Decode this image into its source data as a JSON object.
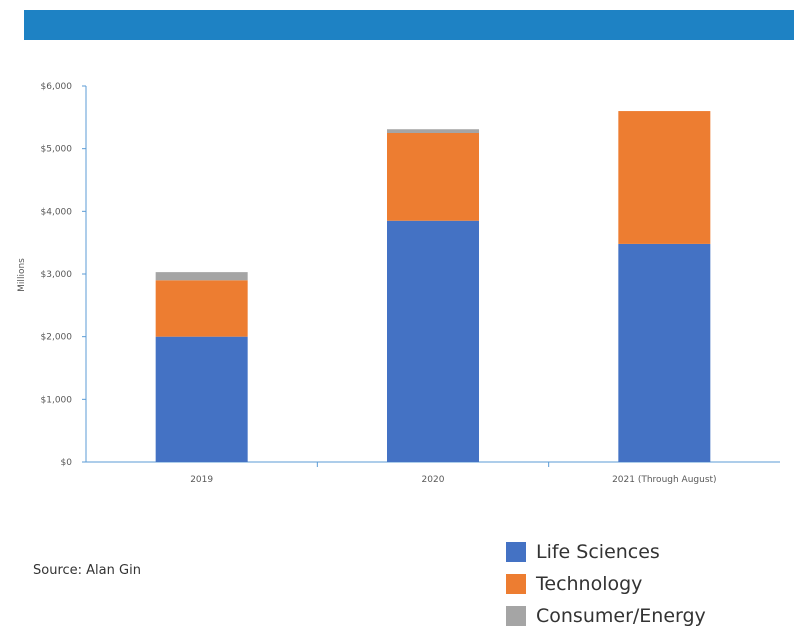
{
  "colors": {
    "header": "#1e82c4",
    "life_sciences": "#4472c4",
    "technology": "#ed7d31",
    "consumer_energy": "#a5a5a5",
    "axis": "#5b9bd5"
  },
  "chart_data": {
    "type": "bar",
    "stacked": true,
    "title": "",
    "xlabel": "",
    "ylabel": "Millions",
    "ylim": [
      0,
      6000
    ],
    "yticks": [
      0,
      1000,
      2000,
      3000,
      4000,
      5000,
      6000
    ],
    "ytick_labels": [
      "$0",
      "$1,000",
      "$2,000",
      "$3,000",
      "$4,000",
      "$5,000",
      "$6,000"
    ],
    "categories": [
      "2019",
      "2020",
      "2021 (Through August)"
    ],
    "series": [
      {
        "name": "Life Sciences",
        "values": [
          2000,
          3850,
          3480
        ],
        "color": "#4472c4"
      },
      {
        "name": "Technology",
        "values": [
          900,
          1400,
          2120
        ],
        "color": "#ed7d31"
      },
      {
        "name": "Consumer/Energy",
        "values": [
          130,
          60,
          0
        ],
        "color": "#a5a5a5"
      }
    ],
    "grid": false,
    "legend_position": "bottom-right"
  },
  "source_text": "Source: Alan Gin",
  "legend": [
    {
      "label": "Life Sciences",
      "color": "#4472c4"
    },
    {
      "label": "Technology",
      "color": "#ed7d31"
    },
    {
      "label": "Consumer/Energy",
      "color": "#a5a5a5"
    }
  ]
}
